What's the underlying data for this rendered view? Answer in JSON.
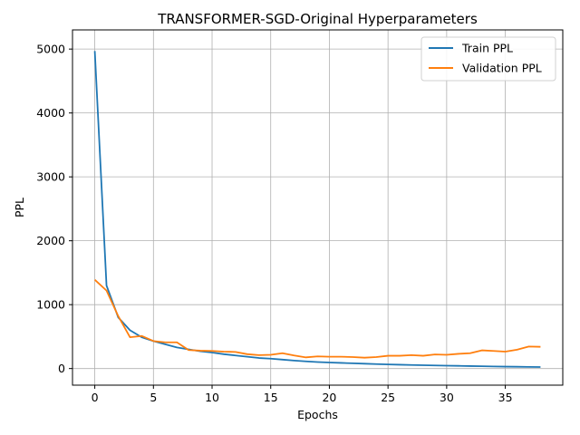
{
  "chart_data": {
    "type": "line",
    "title": "TRANSFORMER-SGD-Original Hyperparameters",
    "xlabel": "Epochs",
    "ylabel": "PPL",
    "xlim": [
      -1.9,
      39.9
    ],
    "ylim": [
      -260,
      5300
    ],
    "xticks": [
      0,
      5,
      10,
      15,
      20,
      25,
      30,
      35
    ],
    "yticks": [
      0,
      1000,
      2000,
      3000,
      4000,
      5000
    ],
    "grid": true,
    "legend_position": "top-right",
    "x": [
      0,
      1,
      2,
      3,
      4,
      5,
      6,
      7,
      8,
      9,
      10,
      11,
      12,
      13,
      14,
      15,
      16,
      17,
      18,
      19,
      20,
      21,
      22,
      23,
      24,
      25,
      26,
      27,
      28,
      29,
      30,
      31,
      32,
      33,
      34,
      35,
      36,
      37,
      38
    ],
    "series": [
      {
        "name": "Train PPL",
        "color": "#1f77b4",
        "values": [
          4970,
          1300,
          800,
          600,
          490,
          430,
          380,
          330,
          300,
          270,
          250,
          225,
          205,
          185,
          165,
          155,
          140,
          125,
          112,
          102,
          95,
          88,
          82,
          76,
          70,
          65,
          60,
          56,
          52,
          48,
          45,
          42,
          39,
          36,
          33,
          30,
          28,
          26,
          24
        ]
      },
      {
        "name": "Validation PPL",
        "color": "#ff7f0e",
        "values": [
          1390,
          1220,
          820,
          490,
          510,
          430,
          410,
          410,
          290,
          280,
          275,
          265,
          260,
          225,
          210,
          215,
          240,
          205,
          175,
          190,
          185,
          185,
          180,
          170,
          180,
          200,
          200,
          210,
          200,
          220,
          215,
          230,
          240,
          285,
          275,
          265,
          295,
          345,
          340
        ]
      }
    ]
  }
}
